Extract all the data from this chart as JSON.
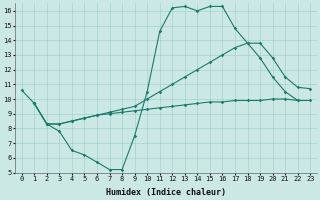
{
  "background_color": "#cce8e4",
  "grid_color": "#99cccc",
  "line_color": "#1a7a6a",
  "xlim": [
    -0.5,
    23.5
  ],
  "ylim": [
    5,
    16.5
  ],
  "xticks": [
    0,
    1,
    2,
    3,
    4,
    5,
    6,
    7,
    8,
    9,
    10,
    11,
    12,
    13,
    14,
    15,
    16,
    17,
    18,
    19,
    20,
    21,
    22,
    23
  ],
  "yticks": [
    5,
    6,
    7,
    8,
    9,
    10,
    11,
    12,
    13,
    14,
    15,
    16
  ],
  "xlabel": "Humidex (Indice chaleur)",
  "series": [
    {
      "x": [
        0,
        1,
        2,
        3,
        4,
        5,
        6,
        7,
        8,
        9,
        10,
        11,
        12,
        13,
        14,
        15,
        16,
        17,
        18,
        19,
        20,
        21,
        22
      ],
      "y": [
        10.6,
        9.7,
        8.3,
        7.8,
        6.5,
        6.2,
        5.7,
        5.2,
        5.2,
        7.5,
        10.5,
        14.6,
        16.2,
        16.3,
        16.0,
        16.3,
        16.3,
        14.8,
        13.8,
        12.8,
        11.5,
        10.5,
        9.9
      ]
    },
    {
      "x": [
        1,
        2,
        3,
        4,
        5,
        6,
        7,
        8,
        9,
        10,
        11,
        12,
        13,
        14,
        15,
        16,
        17,
        18,
        19,
        20,
        21,
        22,
        23
      ],
      "y": [
        9.7,
        8.3,
        8.3,
        8.5,
        8.7,
        8.9,
        9.1,
        9.3,
        9.5,
        10.0,
        10.5,
        11.0,
        11.5,
        12.0,
        12.5,
        13.0,
        13.5,
        13.8,
        13.8,
        12.8,
        11.5,
        10.8,
        10.7
      ]
    },
    {
      "x": [
        1,
        2,
        3,
        4,
        5,
        6,
        7,
        8,
        9,
        10,
        11,
        12,
        13,
        14,
        15,
        16,
        17,
        18,
        19,
        20,
        21,
        22,
        23
      ],
      "y": [
        9.7,
        8.3,
        8.3,
        8.5,
        8.7,
        8.9,
        9.0,
        9.1,
        9.2,
        9.3,
        9.4,
        9.5,
        9.6,
        9.7,
        9.8,
        9.8,
        9.9,
        9.9,
        9.9,
        10.0,
        10.0,
        9.9,
        9.9
      ]
    }
  ],
  "axis_fontsize": 6,
  "tick_fontsize": 5,
  "marker": "D",
  "markersize": 1.8,
  "linewidth": 0.8
}
